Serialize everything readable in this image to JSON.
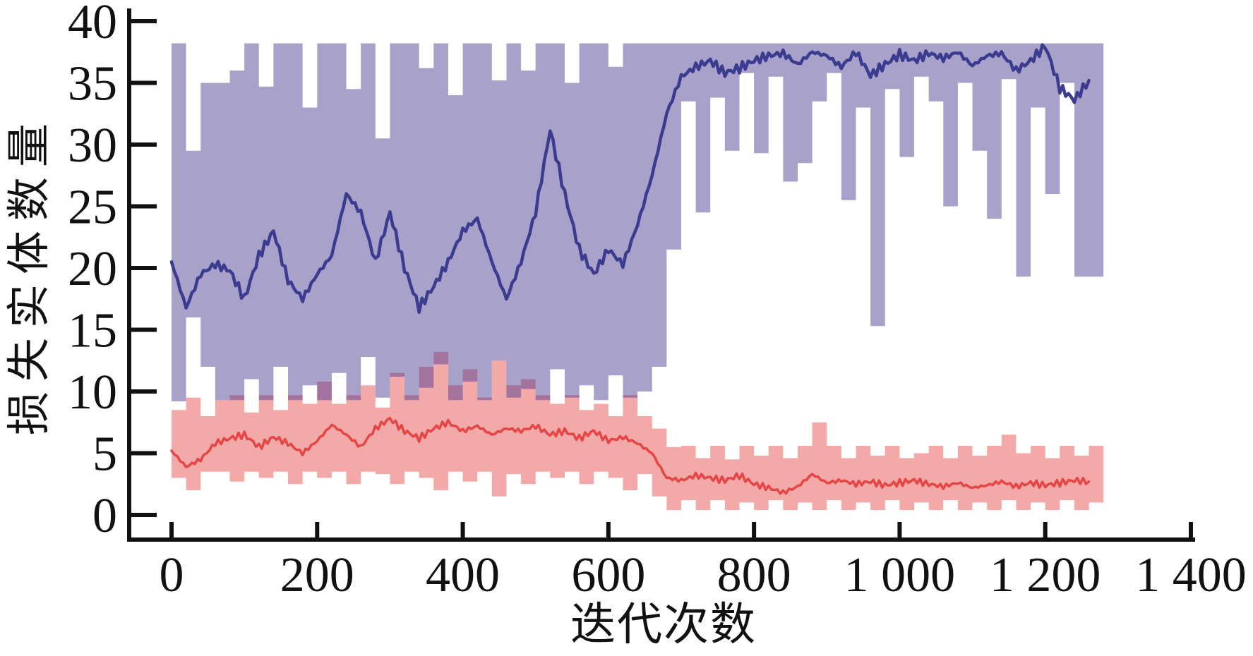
{
  "chart_data": {
    "type": "line",
    "title": "",
    "xlabel": "迭代次数",
    "ylabel": "损失实体数量",
    "xlim": [
      0,
      1400
    ],
    "ylim": [
      0,
      40
    ],
    "x_ticks": [
      0,
      200,
      400,
      600,
      800,
      1000,
      1200,
      1400
    ],
    "x_tick_labels": [
      "0",
      "200",
      "400",
      "600",
      "800",
      "1 000",
      "1 200",
      "1 400"
    ],
    "y_ticks": [
      0,
      5,
      10,
      15,
      20,
      25,
      30,
      35,
      40
    ],
    "y_tick_labels": [
      "0",
      "5",
      "10",
      "15",
      "20",
      "25",
      "30",
      "35",
      "40"
    ],
    "grid": false,
    "legend_position": "none",
    "axis_color": "#111111",
    "background_color": "#ffffff",
    "x_start": 0,
    "x_step": 20,
    "series": [
      {
        "id": "series-1",
        "description": "upper mean curve with min-max band",
        "line_color": "#3b3b8f",
        "band_color": "#a8a2cb",
        "band_overlap_color": "#a2669c",
        "mean": [
          20.5,
          16.8,
          19.5,
          20.3,
          19.8,
          17.5,
          21.0,
          23.0,
          19.0,
          17.5,
          19.5,
          21.0,
          26.0,
          24.5,
          20.5,
          24.5,
          20.0,
          16.8,
          18.5,
          20.5,
          23.0,
          24.0,
          20.5,
          17.5,
          20.5,
          24.5,
          31.2,
          26.0,
          21.5,
          19.5,
          21.5,
          20.3,
          23.5,
          27.5,
          32.5,
          35.5,
          36.3,
          36.8,
          35.8,
          36.2,
          36.8,
          37.2,
          37.4,
          36.5,
          37.5,
          37.2,
          36.3,
          37.5,
          35.6,
          36.5,
          37.3,
          36.8,
          37.4,
          37.0,
          37.5,
          36.4,
          37.2,
          37.4,
          36.0,
          36.8,
          38.0,
          34.6,
          33.6,
          35.2
        ],
        "band_upper": [
          38.2,
          29.5,
          35.0,
          35.0,
          36.0,
          38.2,
          34.7,
          38.2,
          38.2,
          33.0,
          38.2,
          38.2,
          34.5,
          38.2,
          30.5,
          38.2,
          38.2,
          36.2,
          38.2,
          34.0,
          38.2,
          38.2,
          35.2,
          38.2,
          36.0,
          38.2,
          38.2,
          35.0,
          38.2,
          38.2,
          36.3,
          38.2,
          38.2,
          38.2,
          38.2,
          38.2,
          38.2,
          38.2,
          38.2,
          38.2,
          38.2,
          38.2,
          38.2,
          38.2,
          38.2,
          38.2,
          38.2,
          38.2,
          38.2,
          38.2,
          38.2,
          38.2,
          38.2,
          38.2,
          38.2,
          38.2,
          38.2,
          38.2,
          38.2,
          38.2,
          38.2,
          38.2,
          38.2,
          38.2
        ],
        "band_lower": [
          9.2,
          16.0,
          12.0,
          9.3,
          9.3,
          11.0,
          9.3,
          12.0,
          9.3,
          10.5,
          9.3,
          11.5,
          9.3,
          12.8,
          9.5,
          11.2,
          9.3,
          10.3,
          12.2,
          9.3,
          10.8,
          9.3,
          12.5,
          9.5,
          10.2,
          9.3,
          11.8,
          9.5,
          10.5,
          9.3,
          11.3,
          9.5,
          10.0,
          12.0,
          21.5,
          33.5,
          24.5,
          33.8,
          29.5,
          35.8,
          29.3,
          35.5,
          27.0,
          28.5,
          33.5,
          35.8,
          25.5,
          33.0,
          15.3,
          34.5,
          29.0,
          35.5,
          33.5,
          25.0,
          35.0,
          29.5,
          24.0,
          35.3,
          19.3,
          33.0,
          26.0,
          35.0,
          19.3,
          19.3
        ]
      },
      {
        "id": "series-2",
        "description": "lower mean curve with min-max band",
        "line_color": "#e64545",
        "band_color": "#f4a9a9",
        "mean": [
          5.2,
          3.9,
          4.5,
          5.8,
          6.2,
          6.5,
          5.5,
          6.3,
          5.8,
          5.0,
          6.0,
          7.3,
          6.5,
          5.5,
          7.0,
          7.8,
          6.8,
          6.2,
          7.0,
          7.5,
          6.8,
          7.2,
          6.5,
          7.0,
          6.8,
          7.2,
          6.5,
          6.8,
          6.2,
          6.8,
          6.0,
          6.3,
          5.8,
          5.0,
          3.0,
          2.8,
          3.2,
          3.0,
          2.8,
          3.2,
          2.5,
          2.2,
          1.8,
          2.3,
          3.3,
          2.6,
          2.8,
          2.5,
          2.7,
          2.4,
          2.6,
          2.8,
          2.5,
          2.3,
          2.6,
          2.2,
          2.4,
          2.7,
          2.3,
          2.6,
          2.4,
          2.6,
          2.8,
          2.7
        ],
        "band_upper": [
          8.5,
          9.5,
          8.0,
          9.3,
          9.7,
          8.3,
          9.7,
          8.5,
          9.7,
          9.0,
          10.8,
          9.0,
          9.7,
          10.5,
          8.7,
          11.5,
          9.7,
          12.0,
          13.2,
          10.5,
          11.8,
          9.5,
          12.5,
          10.5,
          11.0,
          9.7,
          9.0,
          9.7,
          8.5,
          9.0,
          8.0,
          9.7,
          8.0,
          7.0,
          5.5,
          5.6,
          4.6,
          5.6,
          4.5,
          5.6,
          4.8,
          5.6,
          4.6,
          5.6,
          7.5,
          5.6,
          4.6,
          5.6,
          4.8,
          5.6,
          4.6,
          5.0,
          5.6,
          4.6,
          5.6,
          4.8,
          5.6,
          6.5,
          5.0,
          5.6,
          4.6,
          5.6,
          4.8,
          5.6
        ],
        "band_lower": [
          3.0,
          2.0,
          3.5,
          3.5,
          2.7,
          3.5,
          3.0,
          3.5,
          2.5,
          3.5,
          3.0,
          3.5,
          2.5,
          3.5,
          3.3,
          2.5,
          3.5,
          3.0,
          2.0,
          3.5,
          2.7,
          3.5,
          1.5,
          3.3,
          2.5,
          3.5,
          3.0,
          3.5,
          2.5,
          3.5,
          3.0,
          2.0,
          3.3,
          1.5,
          0.4,
          1.2,
          0.4,
          1.2,
          0.4,
          1.0,
          0.4,
          1.2,
          0.4,
          1.0,
          0.4,
          1.2,
          0.4,
          1.0,
          0.4,
          1.2,
          0.4,
          1.0,
          0.4,
          1.2,
          0.4,
          1.0,
          0.4,
          1.2,
          0.4,
          1.0,
          0.4,
          1.2,
          0.4,
          1.0
        ]
      }
    ]
  }
}
